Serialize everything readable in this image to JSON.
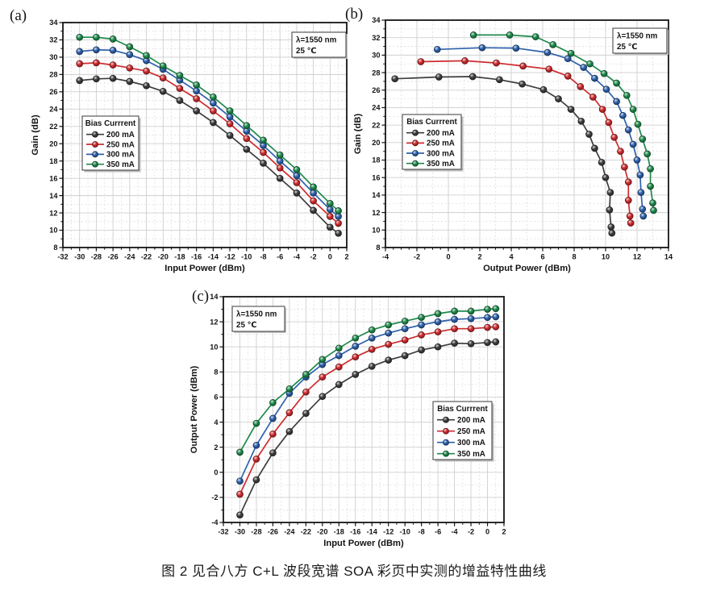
{
  "figure": {
    "caption": "图 2 见合八方 C+L 波段宽谱 SOA 彩页中实测的增益特性曲线"
  },
  "shared": {
    "legend_title": "Bias Currrent",
    "annotation_lines": [
      "λ=1550 nm",
      "25 ℃"
    ],
    "wavelength": "λ=1550 nm",
    "temperature": "25 ℃"
  },
  "series": [
    {
      "name": "200 mA",
      "color": "#3d3d3d",
      "input": [
        -30,
        -28,
        -26,
        -24,
        -22,
        -20,
        -18,
        -16,
        -14,
        -12,
        -10,
        -8,
        -6,
        -4,
        -2,
        0,
        1
      ],
      "gain": [
        27.3,
        27.5,
        27.55,
        27.2,
        26.7,
        26.05,
        25.0,
        23.8,
        22.45,
        20.95,
        19.35,
        17.75,
        16.0,
        14.3,
        12.3,
        10.35,
        9.65
      ],
      "output": [
        -3.4,
        -0.6,
        1.55,
        3.25,
        4.7,
        6.05,
        7.0,
        7.8,
        8.45,
        8.95,
        9.3,
        9.75,
        10.0,
        10.3,
        10.25,
        10.35,
        10.4
      ]
    },
    {
      "name": "250 mA",
      "color": "#ce2b2e",
      "input": [
        -30,
        -28,
        -26,
        -24,
        -22,
        -20,
        -18,
        -16,
        -14,
        -12,
        -10,
        -8,
        -6,
        -4,
        -2,
        0,
        1
      ],
      "gain": [
        29.25,
        29.35,
        29.1,
        28.75,
        28.4,
        27.6,
        26.4,
        25.2,
        23.8,
        22.3,
        20.6,
        19.0,
        17.2,
        15.5,
        13.4,
        11.6,
        10.8
      ],
      "output": [
        -1.75,
        1.05,
        3.05,
        4.75,
        6.4,
        7.6,
        8.4,
        9.2,
        9.8,
        10.2,
        10.55,
        10.95,
        11.2,
        11.45,
        11.45,
        11.55,
        11.6
      ]
    },
    {
      "name": "300 mA",
      "color": "#2d61ad",
      "input": [
        -30,
        -28,
        -26,
        -24,
        -22,
        -20,
        -18,
        -16,
        -14,
        -12,
        -10,
        -8,
        -6,
        -4,
        -2,
        0,
        1
      ],
      "gain": [
        30.65,
        30.85,
        30.8,
        30.3,
        29.6,
        28.6,
        27.35,
        26.1,
        24.7,
        23.1,
        21.45,
        19.8,
        18.0,
        16.3,
        14.3,
        12.4,
        11.6
      ],
      "output": [
        -0.7,
        2.15,
        4.3,
        6.3,
        7.6,
        8.6,
        9.3,
        10.05,
        10.7,
        11.1,
        11.45,
        11.75,
        12.0,
        12.2,
        12.25,
        12.35,
        12.4
      ]
    },
    {
      "name": "350 mA",
      "color": "#1f8a4c",
      "input": [
        -30,
        -28,
        -26,
        -24,
        -22,
        -20,
        -18,
        -16,
        -14,
        -12,
        -10,
        -8,
        -6,
        -4,
        -2,
        0,
        1
      ],
      "gain": [
        32.3,
        32.3,
        32.1,
        31.2,
        30.2,
        29.0,
        27.9,
        26.8,
        25.4,
        23.8,
        22.1,
        20.4,
        18.7,
        17.0,
        15.0,
        13.1,
        12.25
      ],
      "output": [
        1.6,
        3.9,
        5.55,
        6.65,
        7.8,
        9.0,
        9.9,
        10.7,
        11.35,
        11.75,
        12.05,
        12.35,
        12.65,
        12.85,
        12.85,
        13.0,
        13.05
      ]
    }
  ],
  "chart_data": [
    {
      "id": "a",
      "type": "line",
      "panel_label": "(a)",
      "xlabel": "Input Power (dBm)",
      "ylabel": "Gain (dB)",
      "xlim": [
        -32,
        2
      ],
      "ylim": [
        8,
        34
      ],
      "x_major": 2,
      "y_major": 2,
      "x_minor_tick": 1,
      "y_minor_tick": 1,
      "x_minor_grid": 1,
      "y_minor_grid": 1,
      "grid": true,
      "x_key": "input",
      "y_key": "gain",
      "legend_position": "mid-left",
      "annotation_position": "top-right"
    },
    {
      "id": "b",
      "type": "line",
      "panel_label": "(b)",
      "xlabel": "Output Power (dBm)",
      "ylabel": "Gain (dB)",
      "xlim": [
        -4,
        14
      ],
      "ylim": [
        8,
        34
      ],
      "x_major": 2,
      "y_major": 2,
      "x_minor_tick": 0.5,
      "y_minor_tick": 1,
      "x_minor_grid": 1,
      "y_minor_grid": 1,
      "grid": true,
      "x_key": "output",
      "y_key": "gain",
      "legend_position": "mid-left",
      "annotation_position": "top-right"
    },
    {
      "id": "c",
      "type": "line",
      "panel_label": "(c)",
      "xlabel": "Input Power (dBm)",
      "ylabel": "Output Power (dBm)",
      "xlim": [
        -32,
        2
      ],
      "ylim": [
        -4,
        14
      ],
      "x_major": 2,
      "y_major": 2,
      "x_minor_tick": 1,
      "y_minor_tick": 1,
      "x_minor_grid": 1,
      "y_minor_grid": 1,
      "grid": true,
      "x_key": "input",
      "y_key": "output",
      "legend_position": "mid-right",
      "annotation_position": "top-left"
    }
  ]
}
